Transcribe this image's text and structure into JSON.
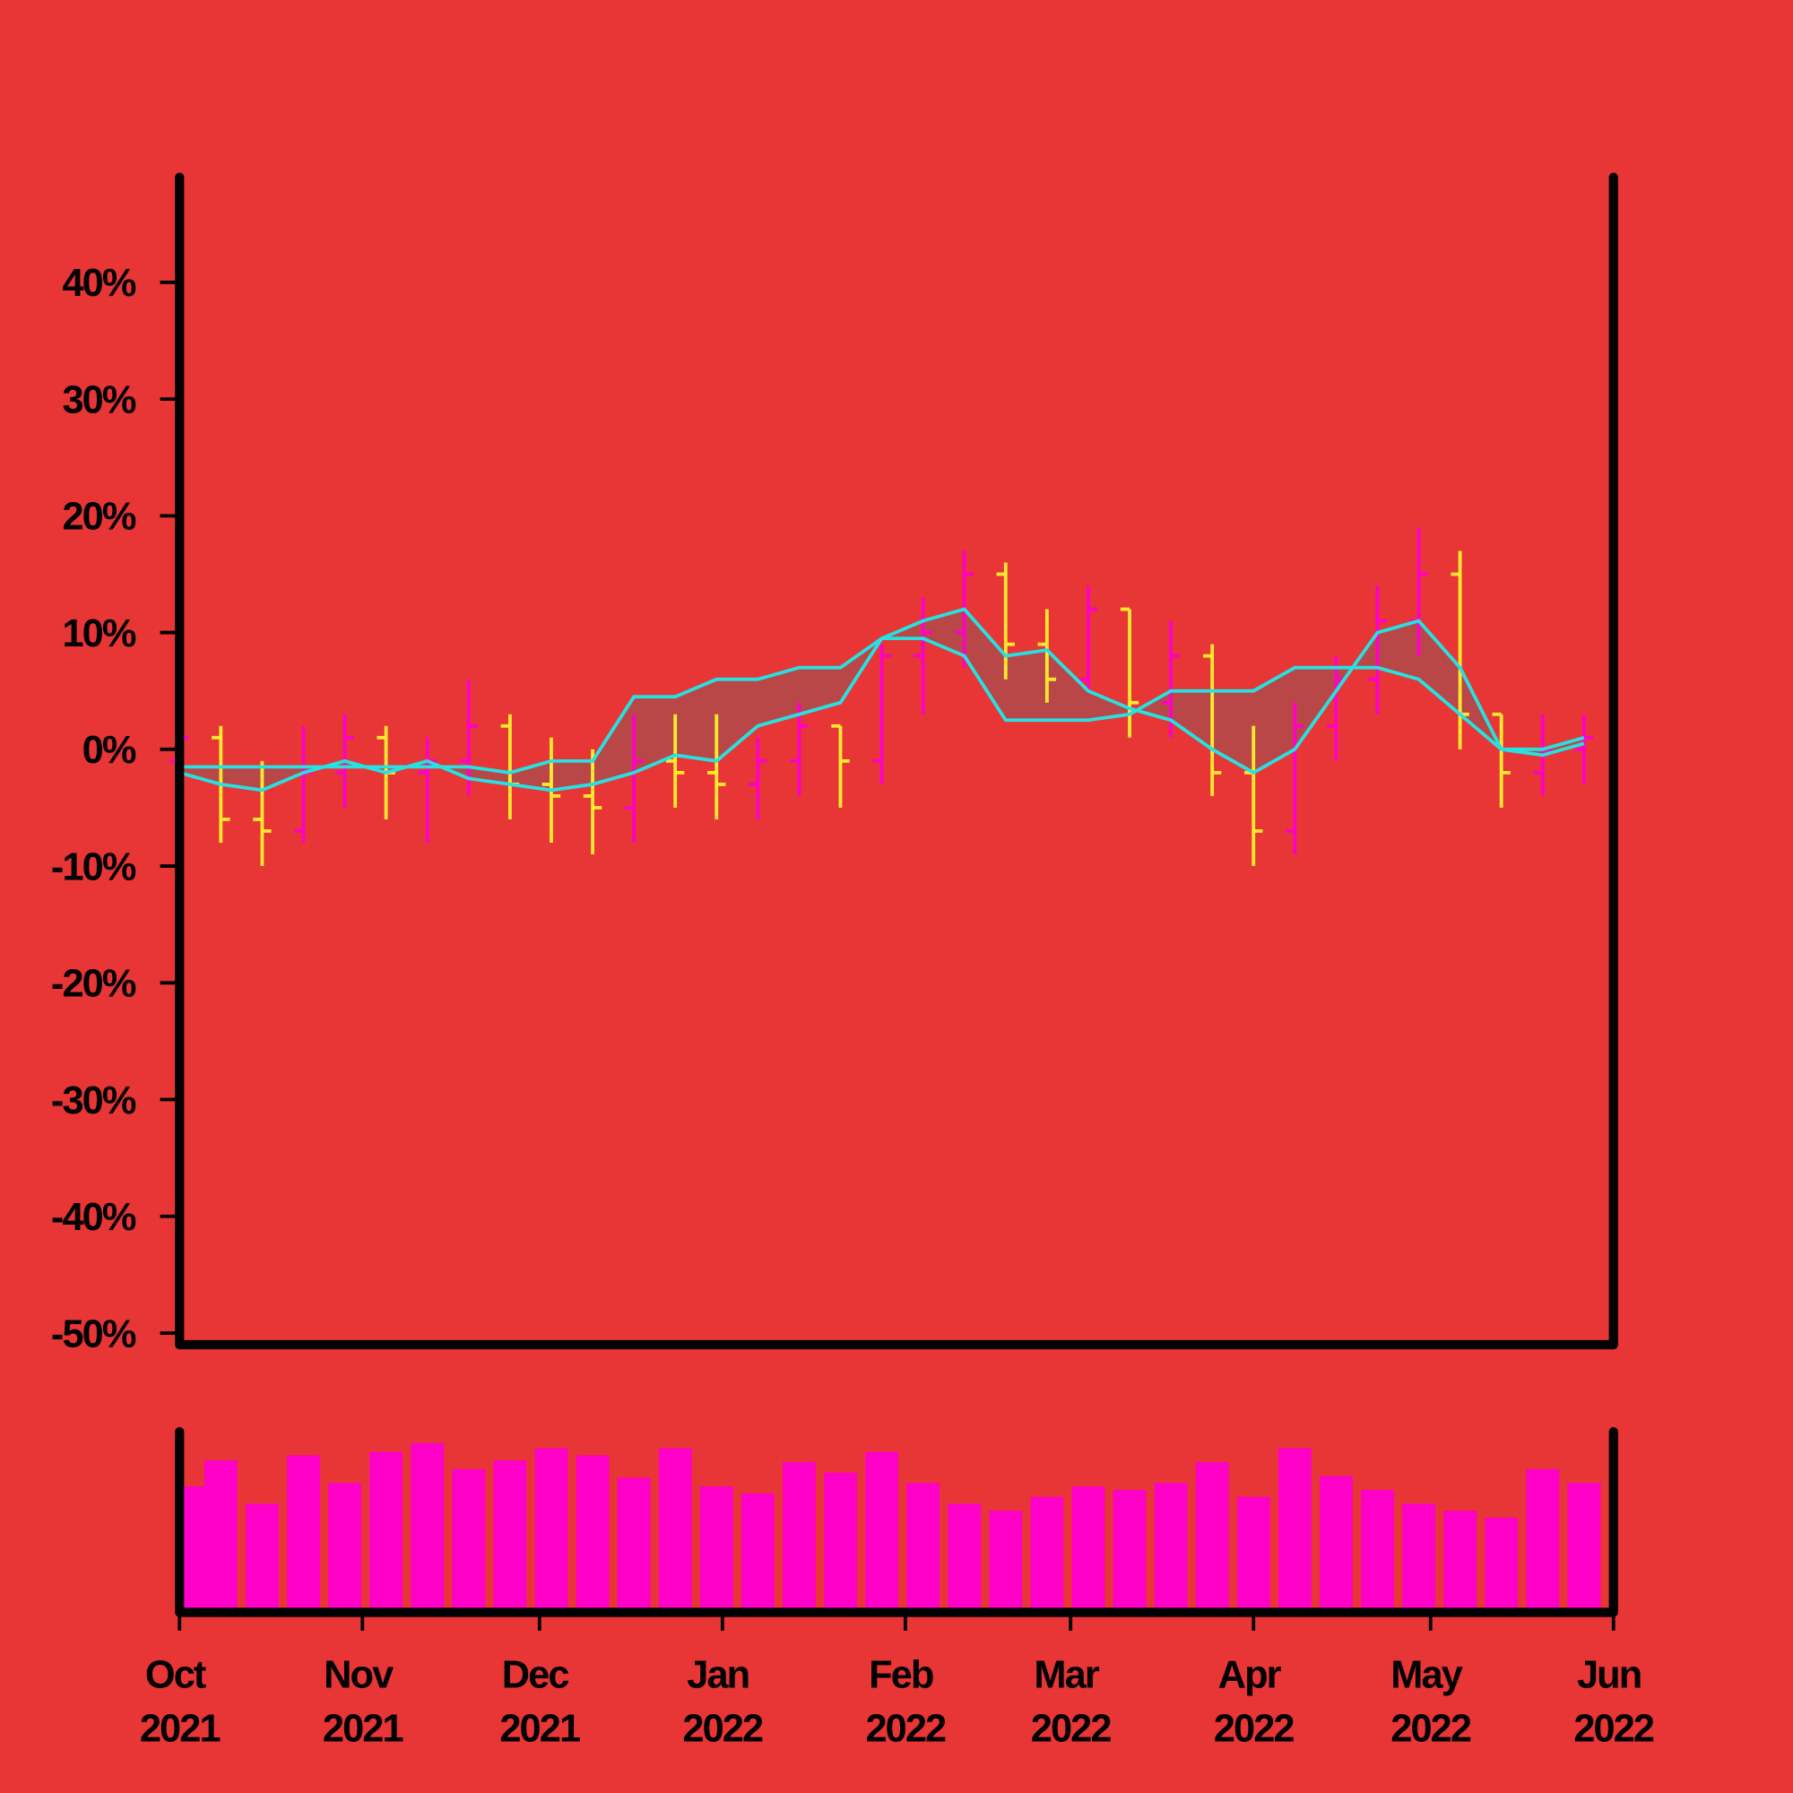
{
  "chart_data": {
    "type": "ohlc",
    "x": [
      "2021-10-01",
      "2021-10-08",
      "2021-10-15",
      "2021-10-22",
      "2021-10-29",
      "2021-11-05",
      "2021-11-12",
      "2021-11-19",
      "2021-11-26",
      "2021-12-03",
      "2021-12-10",
      "2021-12-17",
      "2021-12-24",
      "2021-12-31",
      "2022-01-07",
      "2022-01-14",
      "2022-01-21",
      "2022-01-28",
      "2022-02-04",
      "2022-02-11",
      "2022-02-18",
      "2022-02-25",
      "2022-03-04",
      "2022-03-11",
      "2022-03-18",
      "2022-03-25",
      "2022-04-01",
      "2022-04-08",
      "2022-04-15",
      "2022-04-22",
      "2022-04-29",
      "2022-05-06",
      "2022-05-13",
      "2022-05-20",
      "2022-05-27"
    ],
    "open": [
      -1,
      1,
      -6,
      -7,
      -2,
      1,
      -2,
      -1,
      2,
      -3,
      -4,
      -5,
      -1,
      -2,
      -3,
      -1,
      2,
      -1,
      8,
      10,
      15,
      9,
      6,
      12,
      4,
      8,
      -2,
      -7,
      2,
      6,
      11,
      15,
      3,
      -2,
      0
    ],
    "high": [
      3,
      2,
      -1,
      2,
      3,
      2,
      1,
      6,
      3,
      1,
      0,
      3,
      3,
      3,
      1,
      4,
      2,
      9,
      13,
      17,
      16,
      12,
      14,
      12,
      11,
      9,
      2,
      4,
      8,
      14,
      19,
      17,
      3,
      3,
      3
    ],
    "low": [
      -3,
      -8,
      -10,
      -8,
      -5,
      -6,
      -8,
      -4,
      -6,
      -8,
      -9,
      -8,
      -5,
      -6,
      -6,
      -4,
      -5,
      -3,
      3,
      7,
      6,
      4,
      5,
      1,
      1,
      -4,
      -10,
      -9,
      -1,
      3,
      8,
      0,
      -5,
      -4,
      -3
    ],
    "close": [
      1,
      -6,
      -7,
      -2,
      1,
      -2,
      -1,
      2,
      -3,
      -4,
      -5,
      -1,
      -2,
      -3,
      -1,
      2,
      -1,
      8,
      10,
      15,
      9,
      6,
      12,
      4,
      8,
      -2,
      -7,
      2,
      6,
      11,
      15,
      3,
      -2,
      0,
      1
    ],
    "up_color": "#ff00c8",
    "down_color": "#ffe92e",
    "lines": [
      {
        "color": "#27e1e1",
        "values": [
          -1.5,
          -1.5,
          -1.5,
          -1.5,
          -1.5,
          -1.5,
          -1.5,
          -1.5,
          -2,
          -1,
          -1,
          4.5,
          4.5,
          6,
          6,
          7,
          7,
          9.5,
          9.5,
          8,
          2.5,
          2.5,
          2.5,
          3,
          5,
          5,
          5,
          7,
          7,
          7,
          6,
          3,
          0,
          0,
          1
        ]
      },
      {
        "color": "#27e1e1",
        "values": [
          -2,
          -3,
          -3.5,
          -2,
          -1,
          -2,
          -1,
          -2.5,
          -3,
          -3.5,
          -3,
          -2,
          -0.5,
          -1,
          2,
          3,
          4,
          9.5,
          11,
          12,
          8,
          8.5,
          5,
          3.5,
          2.5,
          0,
          -2,
          0,
          5,
          10,
          11,
          7,
          0,
          -0.5,
          0.5
        ]
      }
    ],
    "cloud_color": "#b04a4a",
    "volume": {
      "color": "#ff00c8",
      "values": [
        70,
        85,
        60,
        88,
        72,
        90,
        95,
        80,
        85,
        92,
        88,
        75,
        92,
        70,
        66,
        84,
        78,
        90,
        72,
        60,
        56,
        64,
        70,
        68,
        72,
        84,
        64,
        92,
        76,
        68,
        60,
        56,
        52,
        80,
        72
      ]
    },
    "xlim": [
      "2021-10",
      "2022-06"
    ],
    "xticks": [
      {
        "value": "2021-10",
        "label": "Oct 2021"
      },
      {
        "value": "2021-11",
        "label": "Nov 2021"
      },
      {
        "value": "2021-12",
        "label": "Dec 2021"
      },
      {
        "value": "2022-01",
        "label": "Jan 2022"
      },
      {
        "value": "2022-02",
        "label": "Feb 2022"
      },
      {
        "value": "2022-03",
        "label": "Mar 2022"
      },
      {
        "value": "2022-04",
        "label": "Apr 2022"
      },
      {
        "value": "2022-05",
        "label": "May 2022"
      },
      {
        "value": "2022-06",
        "label": "Jun 2022"
      }
    ],
    "ylim": [
      -51,
      49
    ],
    "yticks": [
      {
        "value": -50,
        "label": "-50%"
      },
      {
        "value": -40,
        "label": "-40%"
      },
      {
        "value": -30,
        "label": "-30%"
      },
      {
        "value": -20,
        "label": "-20%"
      },
      {
        "value": -10,
        "label": "-10%"
      },
      {
        "value": 0,
        "label": "0%"
      },
      {
        "value": 10,
        "label": "10%"
      },
      {
        "value": 20,
        "label": "20%"
      },
      {
        "value": 30,
        "label": "30%"
      },
      {
        "value": 40,
        "label": "40%"
      }
    ]
  }
}
